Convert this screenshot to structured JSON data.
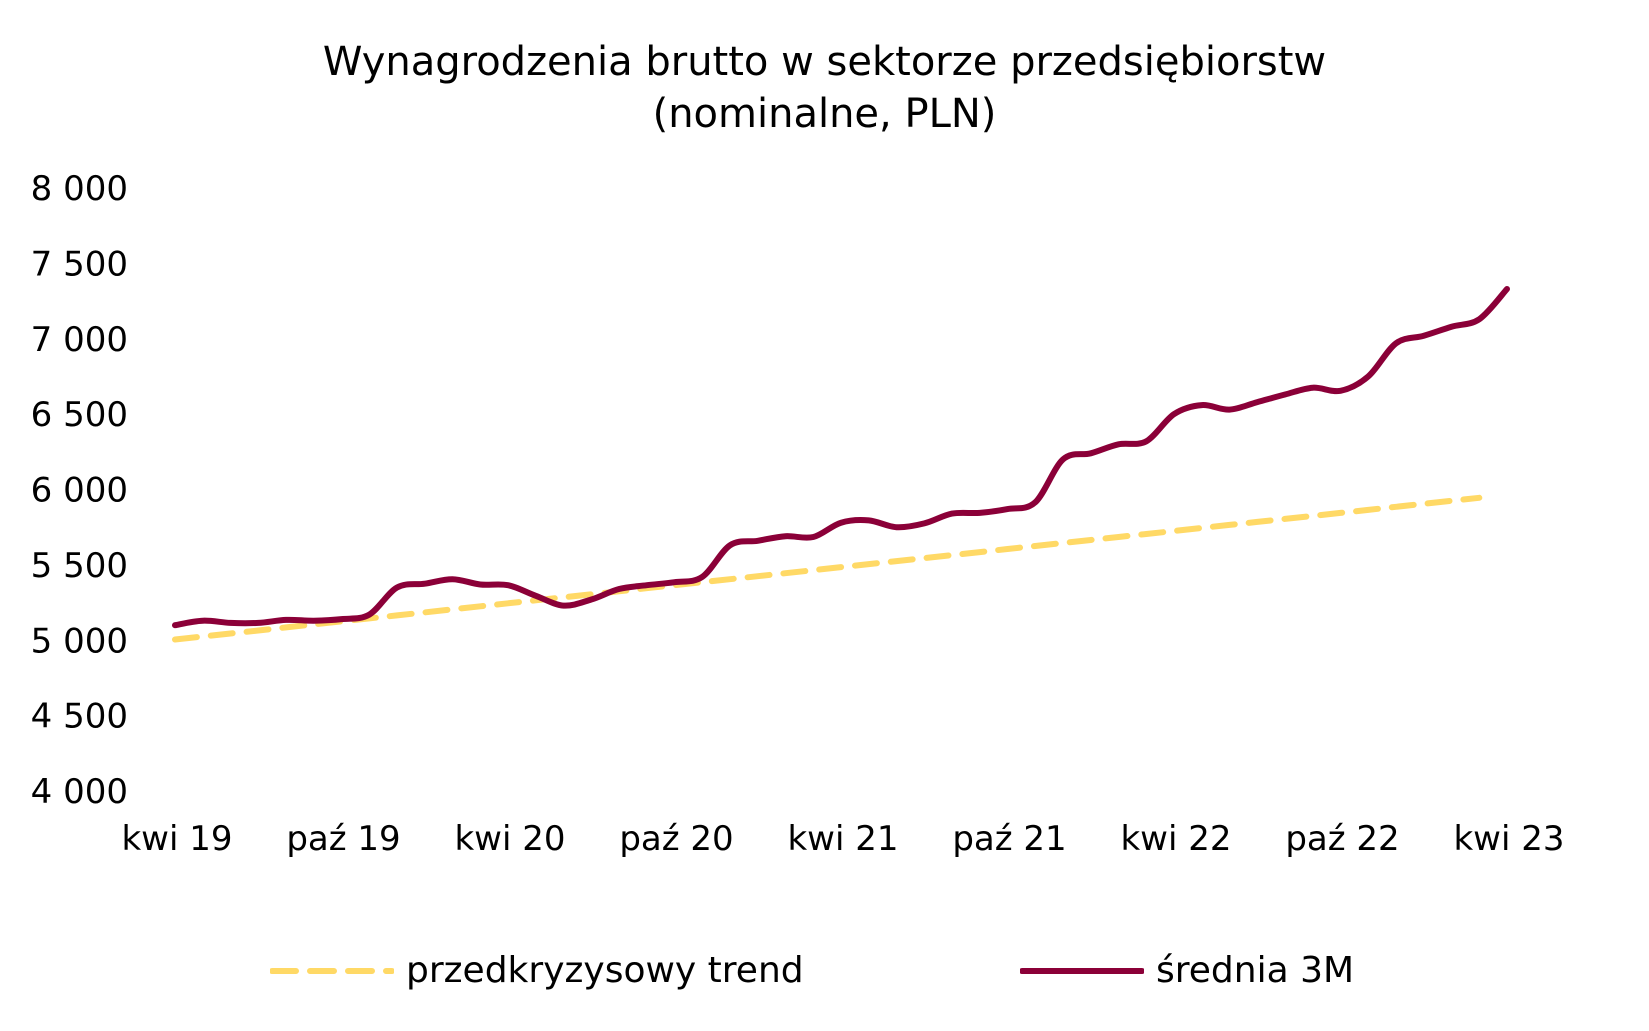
{
  "chart_data": {
    "type": "line",
    "title": "Wynagrodzenia brutto w sektorze przedsiębiorstw",
    "subtitle": "(nominalne, PLN)",
    "xlabel": "",
    "ylabel": "",
    "ylim": [
      4000,
      8000
    ],
    "yticks": [
      4000,
      4500,
      5000,
      5500,
      6000,
      6500,
      7000,
      7500,
      8000
    ],
    "ytick_labels": [
      "4 000",
      "4 500",
      "5 000",
      "5 500",
      "6 000",
      "6 500",
      "7 000",
      "7 500",
      "8 000"
    ],
    "x_start": "2019-04",
    "x_months": 49,
    "xtick_labels": [
      "kwi 19",
      "paź 19",
      "kwi 20",
      "paź 20",
      "kwi 21",
      "paź 21",
      "kwi 22",
      "paź 22",
      "kwi 23"
    ],
    "xtick_index": [
      0,
      6,
      12,
      18,
      24,
      30,
      36,
      42,
      48
    ],
    "grid": false,
    "legend_position": "bottom",
    "series": [
      {
        "name": "przedkryzysowy trend",
        "color": "#FFD966",
        "style": "dashed",
        "x_index_start": 0,
        "values": [
          5005,
          5025,
          5045,
          5065,
          5085,
          5105,
          5125,
          5145,
          5165,
          5185,
          5205,
          5225,
          5245,
          5265,
          5285,
          5305,
          5325,
          5345,
          5365,
          5385,
          5405,
          5425,
          5445,
          5465,
          5485,
          5505,
          5525,
          5545,
          5565,
          5585,
          5605,
          5625,
          5645,
          5665,
          5685,
          5705,
          5725,
          5745,
          5765,
          5785,
          5805,
          5825,
          5845,
          5865,
          5885,
          5905,
          5925,
          5945
        ]
      },
      {
        "name": "średnia 3M",
        "color": "#8B0038",
        "style": "solid",
        "x_index_start": 0,
        "values": [
          5100,
          5130,
          5115,
          5115,
          5135,
          5130,
          5140,
          5170,
          5350,
          5375,
          5405,
          5370,
          5365,
          5295,
          5230,
          5270,
          5340,
          5365,
          5385,
          5420,
          5630,
          5660,
          5690,
          5685,
          5780,
          5795,
          5750,
          5775,
          5840,
          5845,
          5870,
          5915,
          6200,
          6240,
          6300,
          6320,
          6500,
          6560,
          6530,
          6580,
          6630,
          6675,
          6655,
          6750,
          6970,
          7020,
          7080,
          7130,
          7330
        ]
      }
    ]
  }
}
